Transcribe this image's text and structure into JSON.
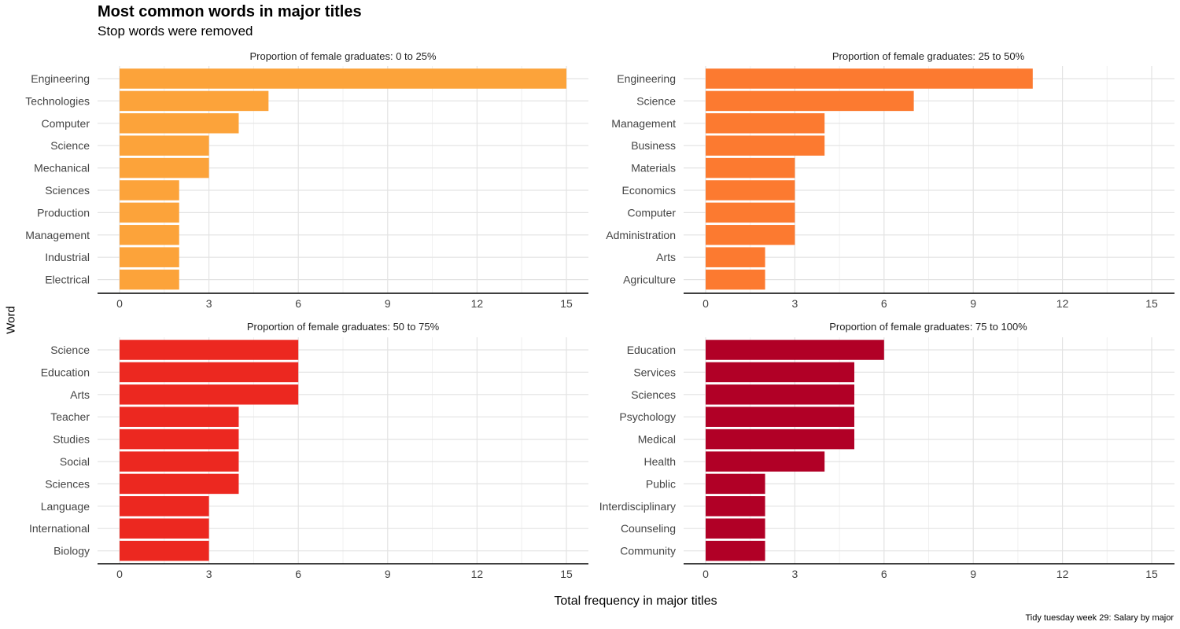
{
  "title": "Most common words in major titles",
  "subtitle": "Stop words were removed",
  "y_label": "Word",
  "x_label": "Total frequency in major titles",
  "caption": "Tidy tuesday week 29: Salary by major",
  "chart_data": [
    {
      "type": "bar",
      "orientation": "horizontal",
      "title": "Proportion of female graduates: 0 to 25%",
      "color": "#FCA33A",
      "categories": [
        "Engineering",
        "Technologies",
        "Computer",
        "Science",
        "Mechanical",
        "Sciences",
        "Production",
        "Management",
        "Industrial",
        "Electrical"
      ],
      "values": [
        15,
        5,
        4,
        3,
        3,
        2,
        2,
        2,
        2,
        2
      ],
      "xlim": [
        0,
        15
      ],
      "xticks": [
        0,
        3,
        6,
        9,
        12,
        15
      ]
    },
    {
      "type": "bar",
      "orientation": "horizontal",
      "title": "Proportion of female graduates: 25 to 50%",
      "color": "#FC7A30",
      "categories": [
        "Engineering",
        "Science",
        "Management",
        "Business",
        "Materials",
        "Economics",
        "Computer",
        "Administration",
        "Arts",
        "Agriculture"
      ],
      "values": [
        11,
        7,
        4,
        4,
        3,
        3,
        3,
        3,
        2,
        2
      ],
      "xlim": [
        0,
        15
      ],
      "xticks": [
        0,
        3,
        6,
        9,
        12,
        15
      ]
    },
    {
      "type": "bar",
      "orientation": "horizontal",
      "title": "Proportion of female graduates: 50 to 75%",
      "color": "#EC2820",
      "categories": [
        "Science",
        "Education",
        "Arts",
        "Teacher",
        "Studies",
        "Social",
        "Sciences",
        "Language",
        "International",
        "Biology"
      ],
      "values": [
        6,
        6,
        6,
        4,
        4,
        4,
        4,
        3,
        3,
        3
      ],
      "xlim": [
        0,
        15
      ],
      "xticks": [
        0,
        3,
        6,
        9,
        12,
        15
      ]
    },
    {
      "type": "bar",
      "orientation": "horizontal",
      "title": "Proportion of female graduates: 75 to 100%",
      "color": "#B10026",
      "categories": [
        "Education",
        "Services",
        "Sciences",
        "Psychology",
        "Medical",
        "Health",
        "Public",
        "Interdisciplinary",
        "Counseling",
        "Community"
      ],
      "values": [
        6,
        5,
        5,
        5,
        5,
        4,
        2,
        2,
        2,
        2
      ],
      "xlim": [
        0,
        15
      ],
      "xticks": [
        0,
        3,
        6,
        9,
        12,
        15
      ]
    }
  ]
}
